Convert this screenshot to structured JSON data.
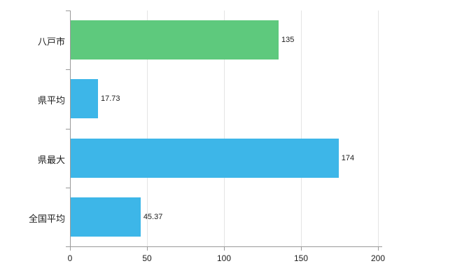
{
  "chart_data": {
    "type": "bar",
    "orientation": "horizontal",
    "title": "",
    "xlabel": "",
    "ylabel": "",
    "categories": [
      "八戸市",
      "県平均",
      "県最大",
      "全国平均"
    ],
    "values": [
      135,
      17.73,
      174,
      45.37
    ],
    "value_labels": [
      "135",
      "17.73",
      "174",
      "45.37"
    ],
    "bar_colors": [
      "#5ec97d",
      "#3db6e8",
      "#3db6e8",
      "#3db6e8"
    ],
    "xlim": [
      0,
      200
    ],
    "xticks": [
      0,
      50,
      100,
      150,
      200
    ],
    "xtick_labels": [
      "0",
      "50",
      "100",
      "150",
      "200"
    ],
    "grid": true,
    "legend": "none",
    "colors": {
      "axis": "#9a9a9a",
      "grid": "#e4e4e4",
      "text": "#1b1b1b"
    }
  }
}
